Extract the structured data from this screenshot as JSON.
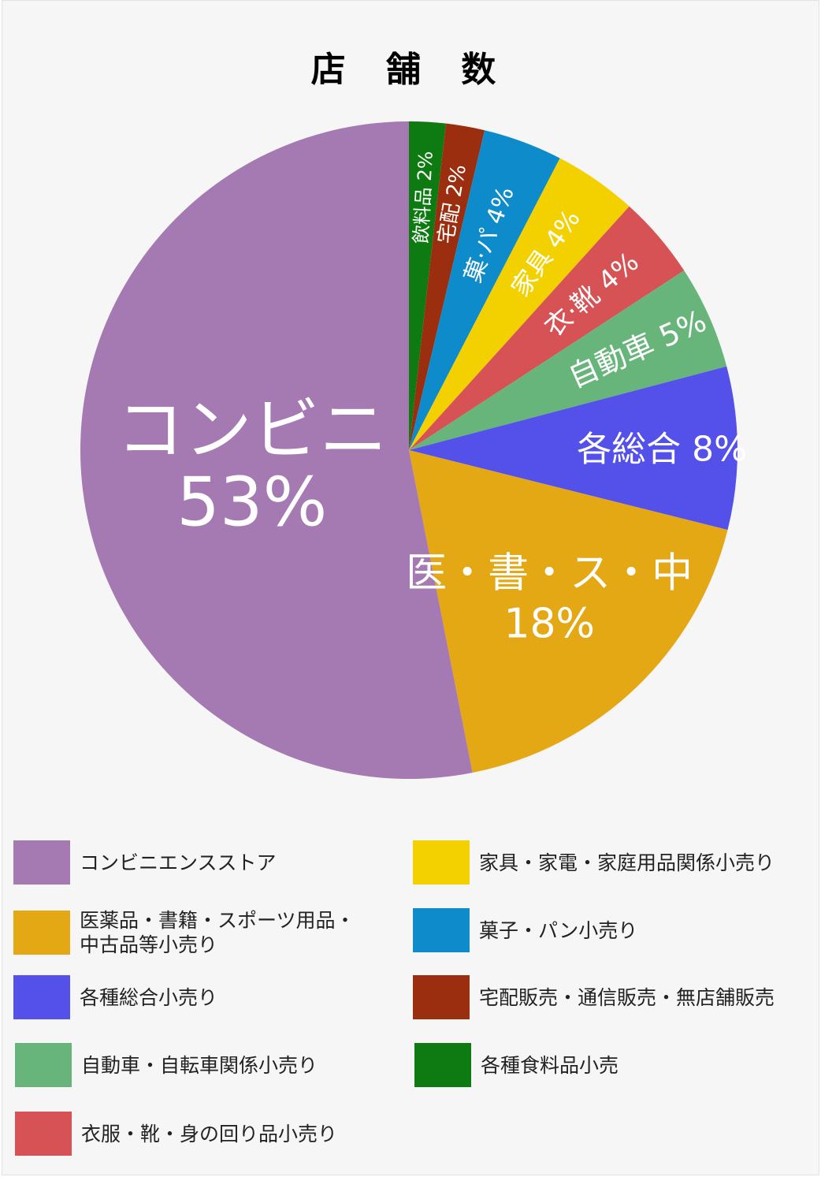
{
  "chart_data": {
    "type": "pie",
    "title": "店 舗 数",
    "unit": "%",
    "slices": [
      {
        "key": "convenience",
        "label": "コンビニ",
        "pct": "53%",
        "value": 53.1,
        "color": "#a57ab2",
        "legend": "コンビニエンスストア"
      },
      {
        "key": "medical",
        "label": "医・書・ス・中",
        "pct": "18%",
        "value": 18,
        "color": "#e3a814",
        "legend": "医薬品・書籍・スポーツ用品・\n中古品等小売り"
      },
      {
        "key": "general",
        "label": "各総合",
        "pct": "8%",
        "value": 8,
        "color": "#5351ea",
        "legend": "各種総合小売り"
      },
      {
        "key": "auto",
        "label": "自動車",
        "pct": "5%",
        "value": 5.1,
        "color": "#68b57c",
        "legend": "自動車・自転車関係小売り"
      },
      {
        "key": "clothing",
        "label": "衣·靴",
        "pct": "4%",
        "value": 4.1,
        "color": "#d65254",
        "legend": "衣服・靴・身の回り品小売り"
      },
      {
        "key": "furniture",
        "label": "家具",
        "pct": "4%",
        "value": 4.1,
        "color": "#f3d100",
        "legend": "家具・家電・家庭用品関係小売り"
      },
      {
        "key": "sweets",
        "label": "菓·パ",
        "pct": "4%",
        "value": 3.9,
        "color": "#0d8bcb",
        "legend": "菓子・パン小売り"
      },
      {
        "key": "delivery",
        "label": "宅配",
        "pct": "2%",
        "value": 1.9,
        "color": "#9b2e0e",
        "legend": "宅配販売・通信販売・無店舗販売"
      },
      {
        "key": "food",
        "label": "飲料品",
        "pct": "2%",
        "value": 1.8,
        "color": "#0e7b12",
        "legend": "各種食料品小売"
      }
    ]
  }
}
